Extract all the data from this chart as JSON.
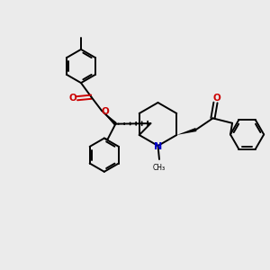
{
  "bg_color": "#ebebeb",
  "bond_color": "#000000",
  "o_color": "#cc0000",
  "n_color": "#0000cc",
  "figsize": [
    3.0,
    3.0
  ],
  "dpi": 100,
  "lw": 1.4,
  "ring_r": 0.62,
  "xlim": [
    0,
    10
  ],
  "ylim": [
    0,
    10
  ]
}
